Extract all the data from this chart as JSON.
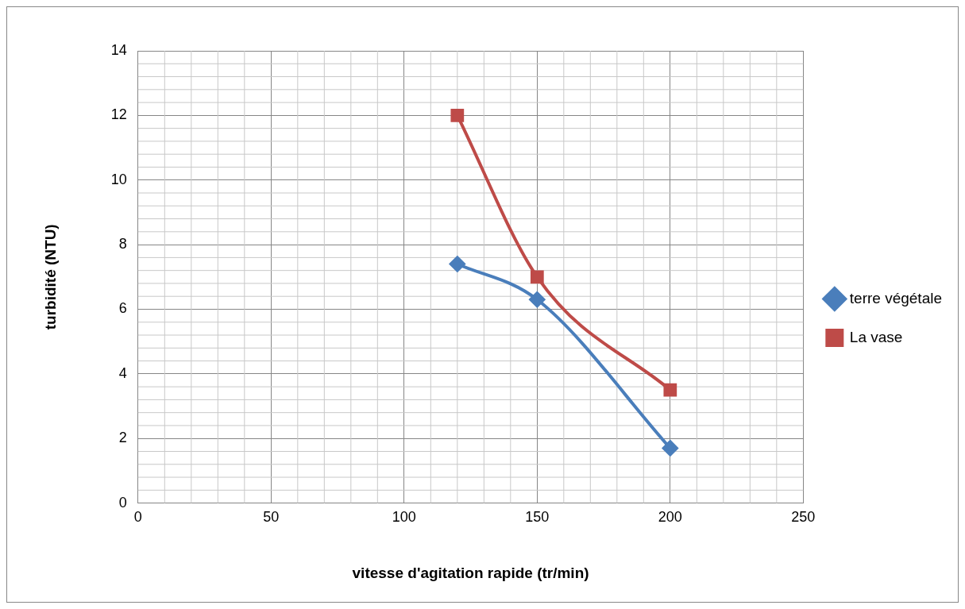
{
  "chart_data": {
    "type": "line",
    "xlabel": "vitesse d'agitation rapide (tr/min)",
    "ylabel": "turbidité (NTU)",
    "x": [
      120,
      150,
      200
    ],
    "series": [
      {
        "name": "terre végétale",
        "color": "#4a7ebb",
        "values": [
          7.4,
          6.3,
          1.7
        ],
        "marker": "diamond"
      },
      {
        "name": "La vase",
        "color": "#be4b48",
        "values": [
          12.0,
          7.0,
          3.5
        ],
        "marker": "square"
      }
    ],
    "xlim": [
      0,
      250
    ],
    "xticks": [
      0,
      50,
      100,
      150,
      200,
      250
    ],
    "ylim": [
      0,
      14
    ],
    "yticks": [
      0,
      2,
      4,
      6,
      8,
      10,
      12,
      14
    ],
    "grid": true,
    "legend": "right"
  }
}
